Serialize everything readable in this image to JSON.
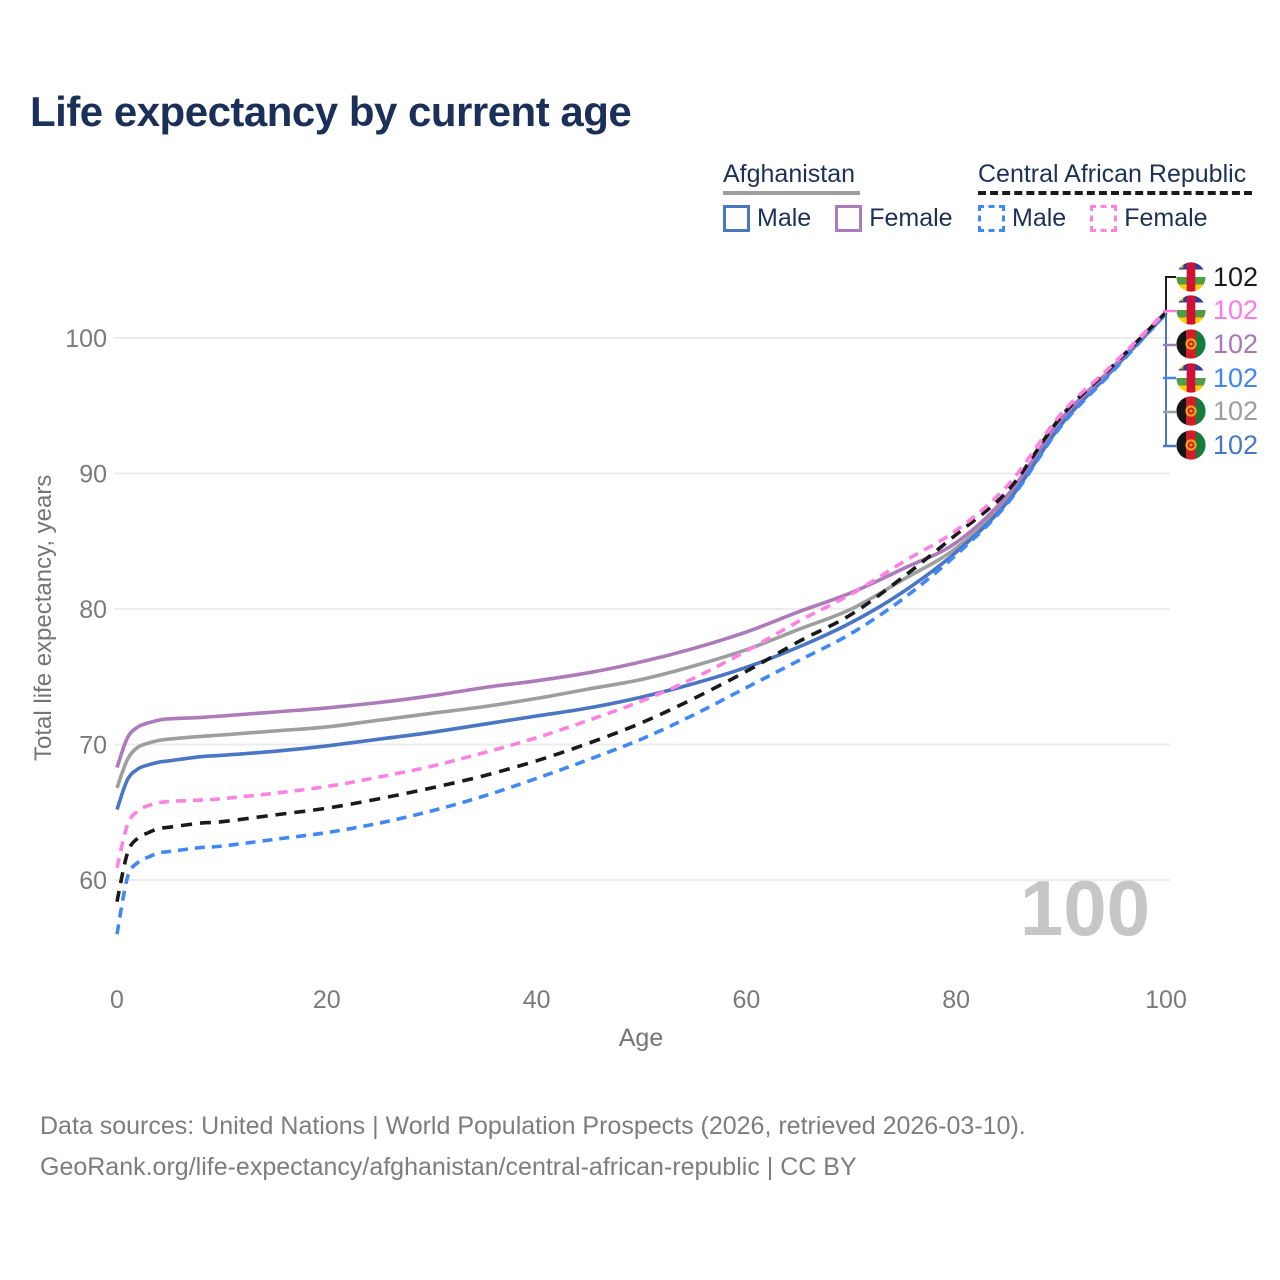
{
  "title": "Life expectancy by current age",
  "legend": {
    "groups": [
      {
        "label": "Afghanistan",
        "line_style": "solid",
        "underline_color": "#9e9e9e",
        "items": [
          {
            "label": "Male",
            "color": "#4a76c4",
            "dashed": false
          },
          {
            "label": "Female",
            "color": "#ad7aba",
            "dashed": false
          }
        ]
      },
      {
        "label": "Central African Republic",
        "line_style": "dashed",
        "underline_color": "#1a1a1a",
        "items": [
          {
            "label": "Male",
            "color": "#4089f5",
            "dashed": true
          },
          {
            "label": "Female",
            "color": "#ff82e2",
            "dashed": true
          }
        ]
      }
    ]
  },
  "watermark": "100",
  "end_labels": [
    {
      "flag": "central-african-republic",
      "value": "102",
      "color": "#1a1a1a",
      "series": "Central African Republic total"
    },
    {
      "flag": "central-african-republic",
      "value": "102",
      "color": "#ff7ae0",
      "series": "Central African Republic female"
    },
    {
      "flag": "afghanistan",
      "value": "102",
      "color": "#a678b8",
      "series": "Afghanistan female"
    },
    {
      "flag": "central-african-republic",
      "value": "102",
      "color": "#4285f4",
      "series": "Central African Republic male"
    },
    {
      "flag": "afghanistan",
      "value": "102",
      "color": "#9e9e9e",
      "series": "Afghanistan total"
    },
    {
      "flag": "afghanistan",
      "value": "102",
      "color": "#4a76c4",
      "series": "Afghanistan male"
    }
  ],
  "footer": {
    "line1": "Data sources: United Nations | World Population Prospects (2026, retrieved 2026-03-10).",
    "line2": "GeoRank.org/life-expectancy/afghanistan/central-african-republic | CC BY"
  },
  "chart_data": {
    "type": "line",
    "title": "Life expectancy by current age",
    "xlabel": "Age",
    "ylabel": "Total life expectancy, years",
    "xlim": [
      0,
      100
    ],
    "ylim": [
      55,
      103
    ],
    "x_ticks": [
      0,
      20,
      40,
      60,
      80,
      100
    ],
    "y_ticks": [
      60,
      70,
      80,
      90,
      100
    ],
    "grid": true,
    "legend_position": "top-right",
    "x": [
      0,
      1,
      2,
      3,
      4,
      5,
      8,
      10,
      15,
      20,
      25,
      30,
      35,
      40,
      45,
      50,
      55,
      60,
      65,
      70,
      75,
      80,
      85,
      90,
      95,
      100
    ],
    "series": [
      {
        "name": "Afghanistan total",
        "country": "Afghanistan",
        "sex": "total",
        "color": "#9e9e9e",
        "dashed": false,
        "values": [
          66.8,
          68.9,
          69.8,
          70.1,
          70.3,
          70.4,
          70.6,
          70.7,
          71.0,
          71.3,
          71.8,
          72.3,
          72.8,
          73.4,
          74.1,
          74.8,
          75.8,
          77.0,
          78.5,
          80.0,
          82.2,
          84.5,
          88.2,
          93.8,
          97.8,
          101.8
        ]
      },
      {
        "name": "Afghanistan male",
        "country": "Afghanistan",
        "sex": "male",
        "color": "#4a76c4",
        "dashed": false,
        "values": [
          65.2,
          67.4,
          68.2,
          68.5,
          68.7,
          68.8,
          69.1,
          69.2,
          69.5,
          69.9,
          70.4,
          70.9,
          71.5,
          72.1,
          72.7,
          73.5,
          74.5,
          75.7,
          77.2,
          79.0,
          81.3,
          84.2,
          88.0,
          93.6,
          97.7,
          101.8
        ]
      },
      {
        "name": "Afghanistan female",
        "country": "Afghanistan",
        "sex": "female",
        "color": "#ad7aba",
        "dashed": false,
        "values": [
          68.3,
          70.5,
          71.3,
          71.6,
          71.8,
          71.9,
          72.0,
          72.1,
          72.4,
          72.7,
          73.1,
          73.6,
          74.2,
          74.7,
          75.3,
          76.1,
          77.1,
          78.3,
          79.8,
          81.2,
          83.0,
          84.9,
          88.5,
          94.0,
          97.9,
          101.9
        ]
      },
      {
        "name": "Central African Republic male",
        "country": "Central African Republic",
        "sex": "male",
        "color": "#4089f5",
        "dashed": true,
        "values": [
          56.0,
          60.2,
          61.3,
          61.7,
          62.0,
          62.1,
          62.4,
          62.5,
          63.0,
          63.5,
          64.2,
          65.1,
          66.2,
          67.5,
          68.9,
          70.4,
          72.2,
          74.2,
          76.2,
          78.2,
          80.8,
          84.0,
          87.9,
          93.5,
          97.6,
          101.8
        ]
      },
      {
        "name": "Central African Republic total",
        "country": "Central African Republic",
        "sex": "total",
        "color": "#1a1a1a",
        "dashed": true,
        "values": [
          58.4,
          62.0,
          63.1,
          63.5,
          63.8,
          63.9,
          64.2,
          64.3,
          64.8,
          65.3,
          66.0,
          66.8,
          67.7,
          68.8,
          70.1,
          71.6,
          73.4,
          75.4,
          77.6,
          79.6,
          82.4,
          85.5,
          88.8,
          94.2,
          98.0,
          101.9
        ]
      },
      {
        "name": "Central African Republic female",
        "country": "Central African Republic",
        "sex": "female",
        "color": "#ff82e2",
        "dashed": true,
        "values": [
          60.9,
          64.1,
          65.1,
          65.5,
          65.7,
          65.8,
          65.9,
          66.0,
          66.4,
          66.9,
          67.6,
          68.4,
          69.4,
          70.5,
          71.8,
          73.2,
          74.9,
          76.9,
          79.1,
          81.1,
          83.5,
          85.8,
          89.2,
          94.4,
          98.1,
          102.0
        ]
      }
    ]
  }
}
